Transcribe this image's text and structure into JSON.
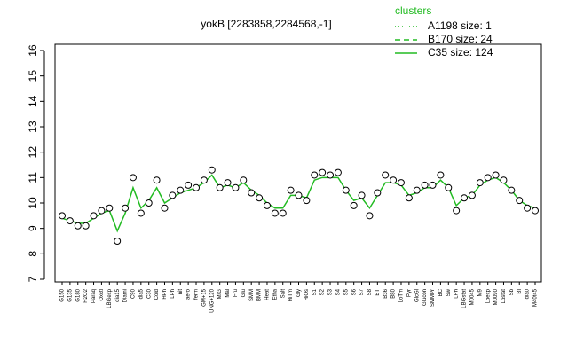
{
  "chart_data": {
    "type": "line",
    "title": "yokB [2283858,2284568,-1]",
    "legend_title": "clusters",
    "categories": [
      "G150",
      "G135",
      "G180",
      "H2O2",
      "Paraq",
      "Oxctl",
      "LBGexp",
      "dia15",
      "Diami",
      "C90",
      "dia5",
      "C30",
      "Cold",
      "HPh",
      "LPh",
      "nit",
      "aero",
      "ferm",
      "GM+15",
      "UNG+120",
      "M/G",
      "Mal",
      "Fru",
      "Glu",
      "SMM",
      "BMM",
      "Heat",
      "Etha",
      "Salt",
      "HiTm",
      "Gly",
      "HiOs",
      "S1",
      "S2",
      "S3",
      "S4",
      "S5",
      "S6",
      "S7",
      "S8",
      "BT",
      "B36",
      "B80",
      "LoTm",
      "Pyr",
      "GlcGl",
      "Glucon",
      "SMMPr",
      "BC",
      "Sw",
      "LPh",
      "LBGstat",
      "M0045",
      "M9",
      "Lbexp",
      "M0090",
      "Lbstat",
      "Sb",
      "BI",
      "dia0",
      "M40t45"
    ],
    "points": [
      9.5,
      9.3,
      9.1,
      9.1,
      9.5,
      9.7,
      9.8,
      8.5,
      9.8,
      11.0,
      9.6,
      10.0,
      10.9,
      9.8,
      10.3,
      10.5,
      10.7,
      10.6,
      10.9,
      11.3,
      10.6,
      10.8,
      10.6,
      10.9,
      10.4,
      10.2,
      9.9,
      9.6,
      9.6,
      10.5,
      10.3,
      10.1,
      11.1,
      11.2,
      11.1,
      11.2,
      10.5,
      9.9,
      10.3,
      9.5,
      10.4,
      11.1,
      10.9,
      10.8,
      10.2,
      10.5,
      10.7,
      10.7,
      11.1,
      10.6,
      9.7,
      10.2,
      10.3,
      10.8,
      11.0,
      11.1,
      10.9,
      10.5,
      10.1,
      9.8,
      9.7
    ],
    "series": [
      {
        "name": "A1198 size: 1",
        "color": "#22bb22",
        "dash": "dotted"
      },
      {
        "name": "B170 size: 24",
        "color": "#22bb22",
        "dash": "dashed"
      },
      {
        "name": "C35 size: 124",
        "color": "#22bb22",
        "dash": "solid",
        "values": [
          9.4,
          9.3,
          9.2,
          9.2,
          9.4,
          9.6,
          9.7,
          8.9,
          9.6,
          10.6,
          9.8,
          10.1,
          10.6,
          10.0,
          10.2,
          10.4,
          10.5,
          10.6,
          10.8,
          11.1,
          10.6,
          10.7,
          10.6,
          10.8,
          10.5,
          10.3,
          10.0,
          9.8,
          9.8,
          10.3,
          10.3,
          10.2,
          10.9,
          11.0,
          11.0,
          11.0,
          10.5,
          10.1,
          10.2,
          9.8,
          10.3,
          10.8,
          10.8,
          10.7,
          10.3,
          10.4,
          10.6,
          10.6,
          10.9,
          10.6,
          9.9,
          10.2,
          10.3,
          10.7,
          10.9,
          11.0,
          10.8,
          10.5,
          10.1,
          9.9,
          9.8
        ]
      }
    ],
    "ylim": [
      7,
      16
    ],
    "yticks": [
      7,
      8,
      9,
      10,
      11,
      12,
      13,
      14,
      15,
      16
    ]
  }
}
